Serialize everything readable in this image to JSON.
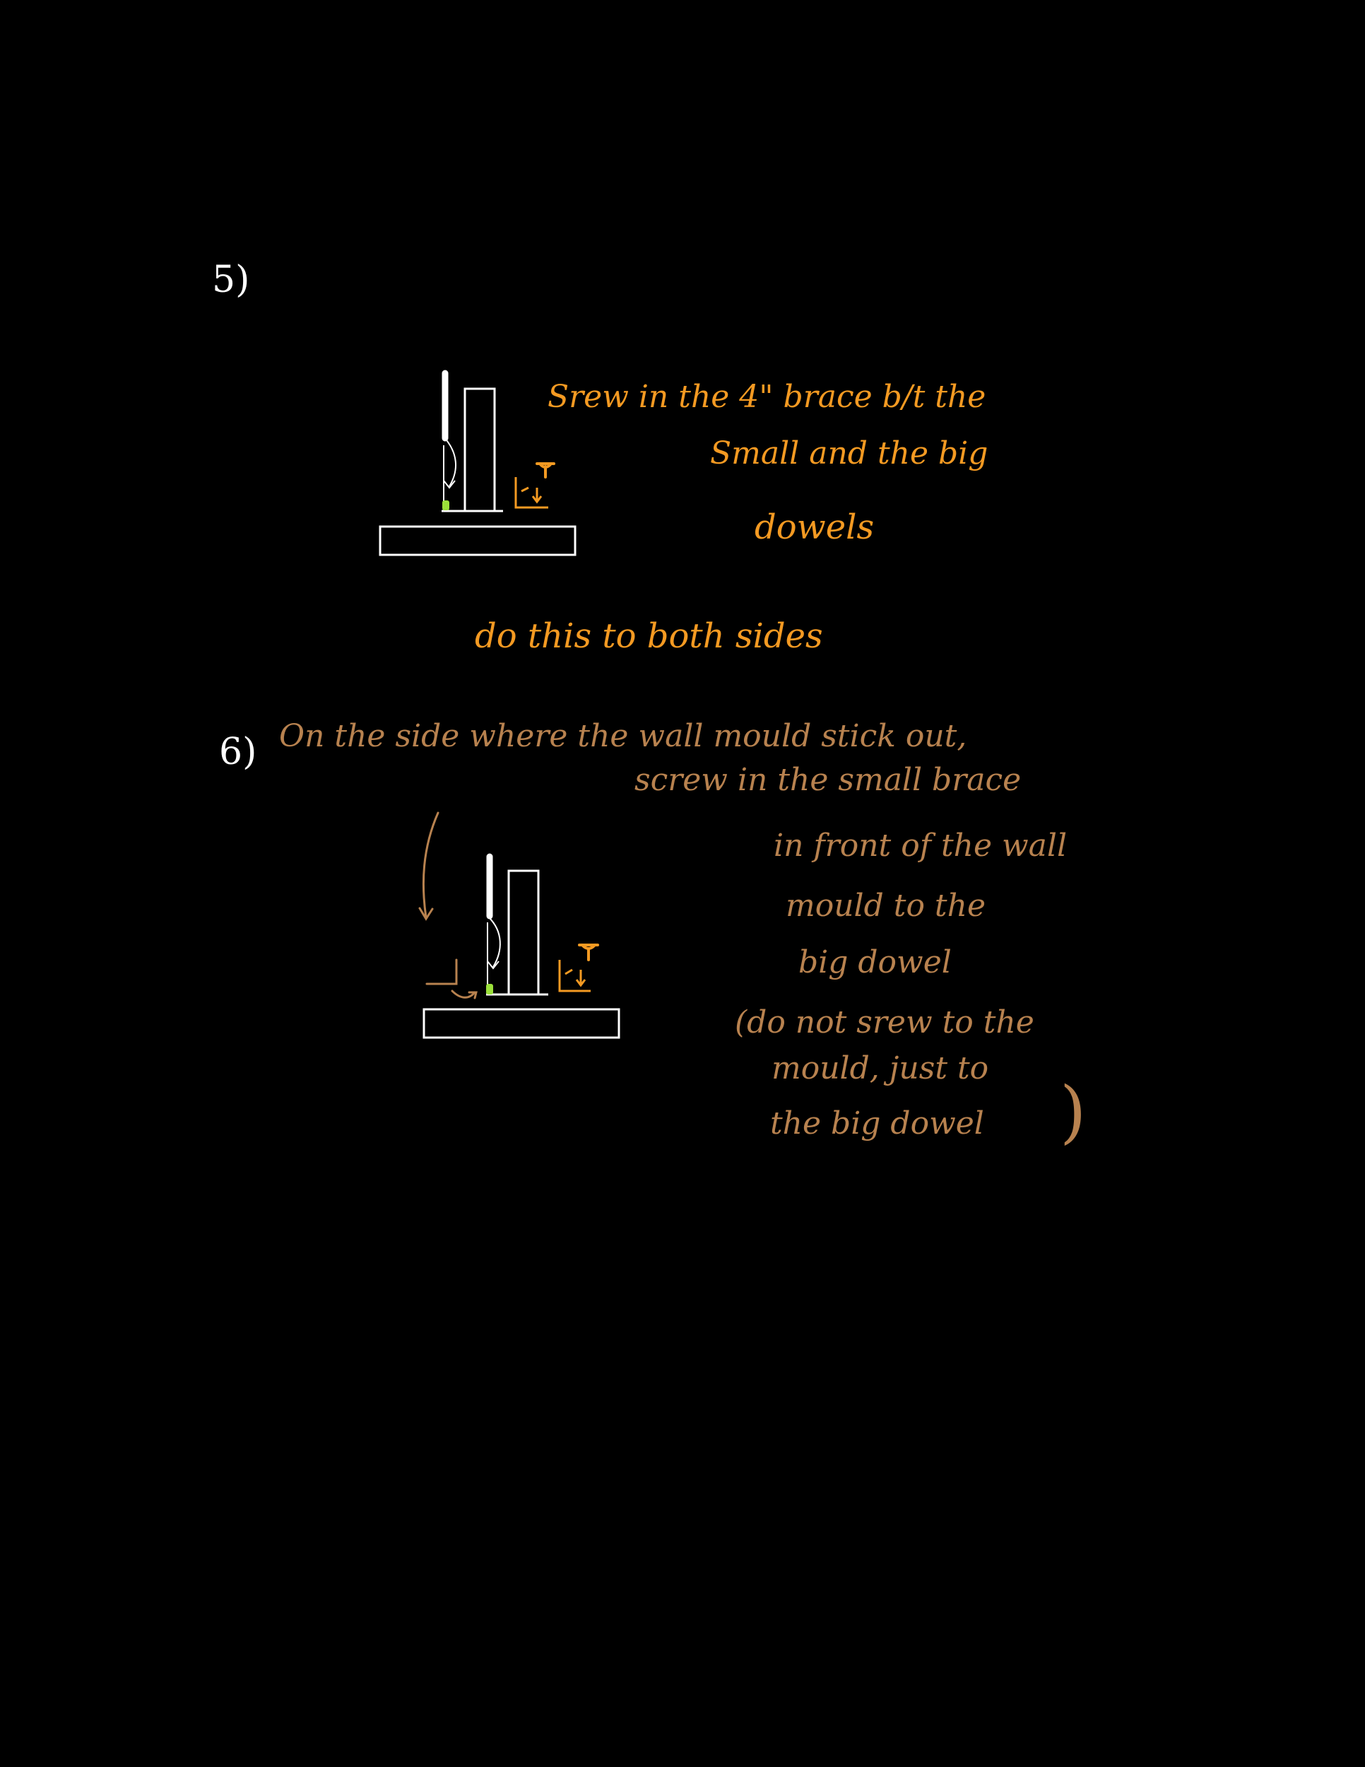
{
  "steps": [
    {
      "number": "5)",
      "instruction_lines": [
        "Srew in the 4\" brace b/t the",
        "Small and the big",
        "dowels"
      ],
      "note": "do this to both sides"
    },
    {
      "number": "6)",
      "instruction_lines": [
        "On the side where the wall mould stick out,",
        "screw in the small brace",
        "in front of the wall",
        "mould to the",
        "big dowel"
      ],
      "note_lines": [
        "(do not srew to the",
        "mould, just to",
        "the big dowel",
        ")"
      ]
    }
  ],
  "colors": {
    "background": "#000000",
    "drawing": "#ffffff",
    "step5_text": "#f49a22",
    "step6_text": "#b8824f",
    "screw_highlight": "#9be03a"
  },
  "icons": [
    "screw-icon",
    "angle-bracket-icon",
    "curved-arrow-icon"
  ]
}
